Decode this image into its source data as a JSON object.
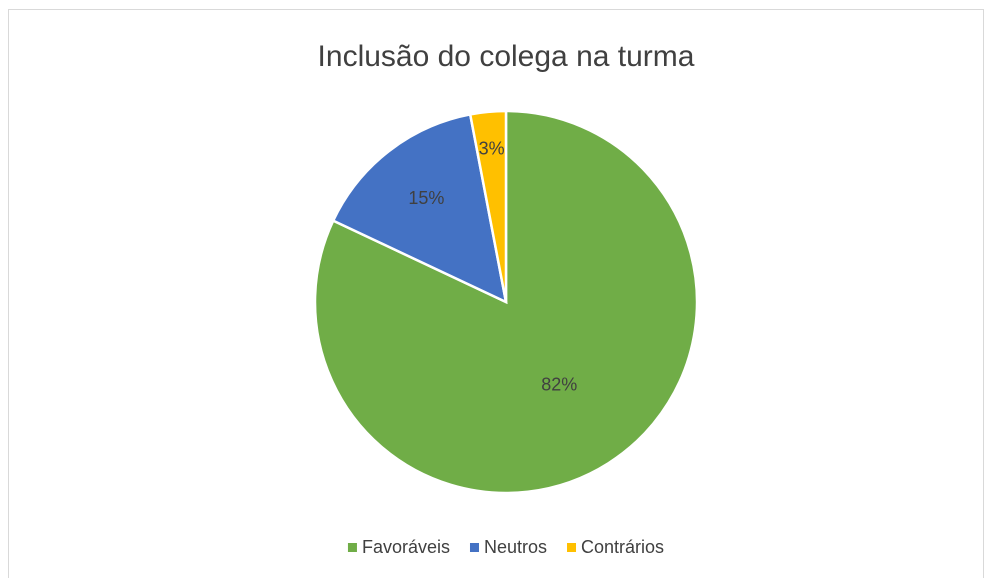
{
  "chart_data": {
    "type": "pie",
    "title": "Inclusão do colega na turma",
    "categories": [
      "Favoráveis",
      "Neutros",
      "Contrários"
    ],
    "values": [
      82,
      15,
      3
    ],
    "value_labels": [
      "82%",
      "15%",
      "3%"
    ],
    "colors": [
      "#70ad47",
      "#4472c4",
      "#ffc000"
    ],
    "legend": "bottom"
  }
}
